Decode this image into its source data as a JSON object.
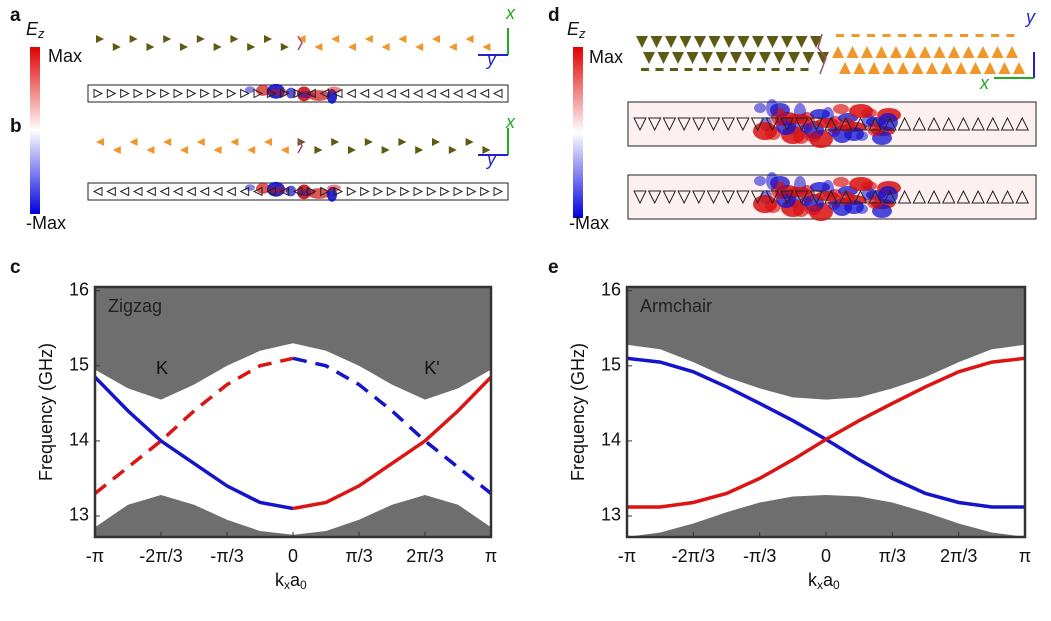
{
  "figure": {
    "panel_labels": [
      "a",
      "b",
      "c",
      "d",
      "e"
    ],
    "colorbar_left": {
      "symbol": [
        "E",
        "z"
      ],
      "max": "Max",
      "min": "-Max"
    },
    "colorbar_right": {
      "symbol": [
        "E",
        "z"
      ],
      "max": "Max",
      "min": "-Max"
    },
    "axes_a": [
      "x",
      "y"
    ],
    "axes_b": [
      "x",
      "y"
    ],
    "axes_d": [
      "y",
      "x"
    ]
  },
  "chart_data": [
    {
      "type": "line",
      "annotations": [
        "Zigzag",
        "K",
        "K'"
      ],
      "y_label": "Frequency (GHz)",
      "x_label": [
        "k",
        "x",
        "a",
        "0"
      ],
      "x": [
        -3.1416,
        -2.618,
        -2.0944,
        -1.5708,
        -1.0472,
        -0.5236,
        0,
        0.5236,
        1.0472,
        1.5708,
        2.0944,
        2.618,
        3.1416
      ],
      "bulk_upper_edge": [
        14.95,
        14.7,
        14.55,
        14.75,
        15.0,
        15.2,
        15.3,
        15.2,
        15.0,
        14.75,
        14.55,
        14.7,
        14.95
      ],
      "bulk_lower_edge": [
        12.85,
        13.15,
        13.28,
        13.15,
        12.95,
        12.8,
        12.75,
        12.8,
        12.95,
        13.15,
        13.28,
        13.15,
        12.85
      ],
      "bulk_color": "#6e6e6e",
      "series": [
        {
          "color": "#1414c8",
          "dashed": false,
          "values": [
            14.85,
            14.4,
            14.0,
            13.7,
            13.4,
            13.18,
            13.1,
            null,
            null,
            null,
            null,
            null,
            null
          ]
        },
        {
          "color": "#dc1414",
          "dashed": false,
          "values": [
            null,
            null,
            null,
            null,
            null,
            null,
            13.1,
            13.18,
            13.4,
            13.7,
            14.0,
            14.4,
            14.85
          ]
        },
        {
          "color": "#dc1414",
          "dashed": true,
          "values": [
            13.3,
            13.65,
            14.0,
            14.4,
            14.75,
            15.0,
            15.1,
            null,
            null,
            null,
            null,
            null,
            null
          ]
        },
        {
          "color": "#1414c8",
          "dashed": true,
          "values": [
            null,
            null,
            null,
            null,
            null,
            null,
            15.1,
            15.0,
            14.75,
            14.4,
            14.0,
            13.65,
            13.3
          ]
        }
      ],
      "xlim": [
        -3.1416,
        3.1416
      ],
      "ylim": [
        12.72,
        16.05
      ],
      "xticks": [
        {
          "value": -3.1416,
          "label": "-π"
        },
        {
          "value": -2.0944,
          "label": "-2π/3"
        },
        {
          "value": -1.0472,
          "label": "-π/3"
        },
        0,
        {
          "value": 1.0472,
          "label": "π/3"
        },
        {
          "value": 2.0944,
          "label": "2π/3"
        },
        {
          "value": 3.1416,
          "label": "π"
        }
      ],
      "yticks": [
        13,
        14,
        15,
        16
      ]
    },
    {
      "type": "line",
      "annotations": [
        "Armchair"
      ],
      "y_label": "Frequency (GHz)",
      "x_label": [
        "k",
        "x",
        "a",
        "0"
      ],
      "x": [
        -3.1416,
        -2.618,
        -2.0944,
        -1.5708,
        -1.0472,
        -0.5236,
        0,
        0.5236,
        1.0472,
        1.5708,
        2.0944,
        2.618,
        3.1416
      ],
      "bulk_upper_edge": [
        15.28,
        15.22,
        15.05,
        14.85,
        14.7,
        14.58,
        14.55,
        14.58,
        14.7,
        14.85,
        15.05,
        15.22,
        15.28
      ],
      "bulk_lower_edge": [
        12.72,
        12.78,
        12.9,
        13.05,
        13.18,
        13.26,
        13.28,
        13.26,
        13.18,
        13.05,
        12.9,
        12.78,
        12.72
      ],
      "bulk_color": "#6e6e6e",
      "series": [
        {
          "color": "#1414c8",
          "dashed": false,
          "values": [
            15.1,
            15.05,
            14.92,
            14.72,
            14.5,
            14.27,
            14.02,
            13.75,
            13.5,
            13.3,
            13.18,
            13.12,
            13.12
          ]
        },
        {
          "color": "#dc1414",
          "dashed": false,
          "values": [
            13.12,
            13.12,
            13.18,
            13.3,
            13.5,
            13.75,
            14.02,
            14.27,
            14.5,
            14.72,
            14.92,
            15.05,
            15.1
          ]
        }
      ],
      "xlim": [
        -3.1416,
        3.1416
      ],
      "ylim": [
        12.72,
        16.05
      ],
      "xticks": [
        {
          "value": -3.1416,
          "label": "-π"
        },
        {
          "value": -2.0944,
          "label": "-2π/3"
        },
        {
          "value": -1.0472,
          "label": "-π/3"
        },
        0,
        {
          "value": 1.0472,
          "label": "π/3"
        },
        {
          "value": 2.0944,
          "label": "2π/3"
        },
        {
          "value": 3.1416,
          "label": "π"
        }
      ],
      "yticks": [
        13,
        14,
        15,
        16
      ]
    }
  ]
}
